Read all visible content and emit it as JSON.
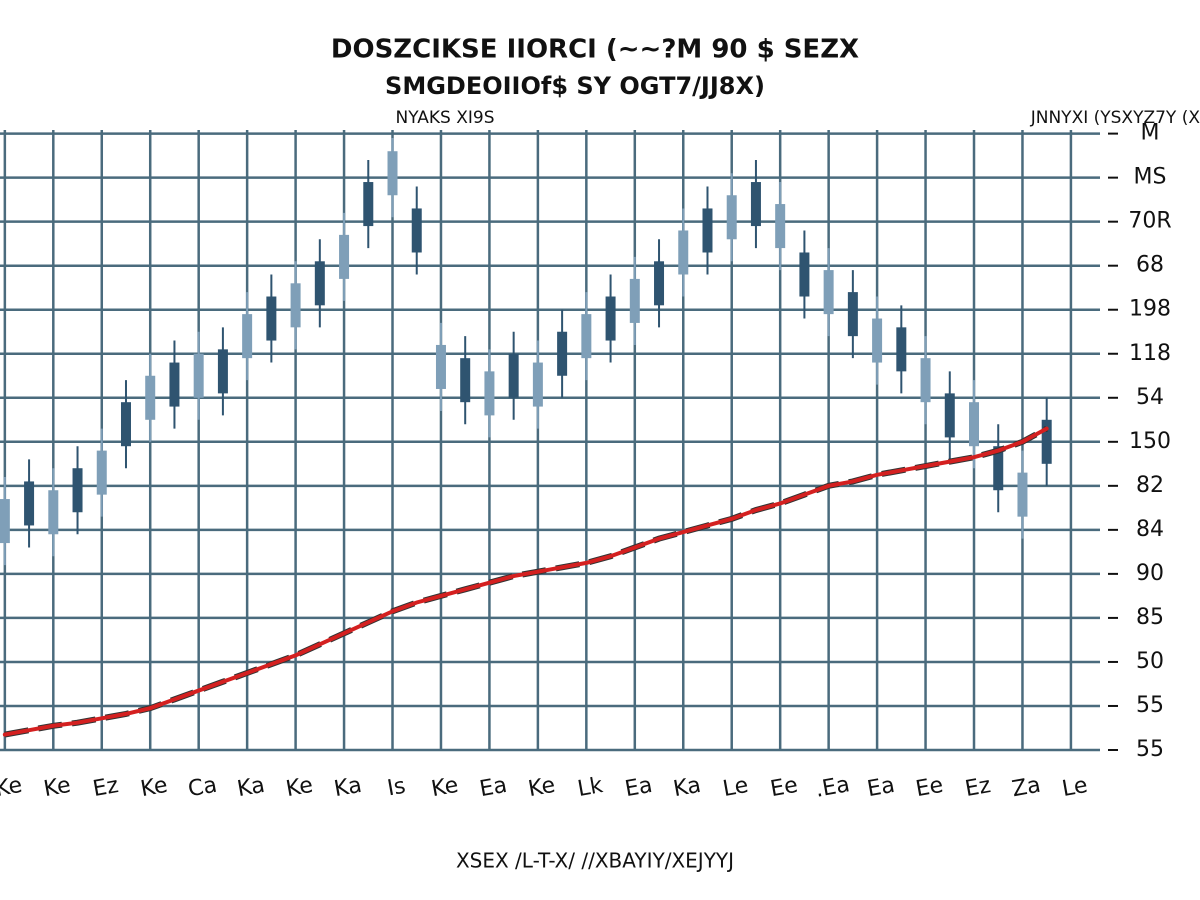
{
  "chart_data": {
    "type": "candlestick",
    "title": "DOSZCIKSE IIORCI (~~?M 90 $ SEZX",
    "subtitle": "SMGDEOIIOf$ SY OGT7/JJ8X)",
    "annotations": [
      "NYAKS XI9S",
      "JNNYXI (YSXYZ7Y (X"
    ],
    "x_label": "XSEX /L-T-X/ //XBAYIY/XEJYYJ",
    "open": [
      4.7,
      6.1,
      4.9,
      6.4,
      5.8,
      7.9,
      7.5,
      8.8,
      8.0,
      9.1,
      8.9,
      10.3,
      9.6,
      11.1,
      10.7,
      12.9,
      12.6,
      12.3,
      8.2,
      8.9,
      7.6,
      9.0,
      7.8,
      9.5,
      8.9,
      10.3,
      9.7,
      11.1,
      10.8,
      12.3,
      11.6,
      12.9,
      11.4,
      11.3,
      9.9,
      10.4,
      8.8,
      9.6,
      7.9,
      8.1,
      6.9,
      6.9,
      5.3,
      7.5
    ],
    "close": [
      5.7,
      5.1,
      5.9,
      5.4,
      6.8,
      6.9,
      8.5,
      7.8,
      9.0,
      8.1,
      9.9,
      9.3,
      10.6,
      10.1,
      11.7,
      11.9,
      13.6,
      11.3,
      9.2,
      7.9,
      8.6,
      8.0,
      8.8,
      8.5,
      9.9,
      9.3,
      10.7,
      10.1,
      11.8,
      11.3,
      12.6,
      11.9,
      12.4,
      10.3,
      10.9,
      9.4,
      9.8,
      8.6,
      8.9,
      7.1,
      7.9,
      5.9,
      6.3,
      6.5
    ],
    "high": [
      6.2,
      6.6,
      6.4,
      6.9,
      7.3,
      8.4,
      9.0,
      9.3,
      9.5,
      9.6,
      10.4,
      10.8,
      11.1,
      11.6,
      12.2,
      13.4,
      13.9,
      12.8,
      9.7,
      9.4,
      9.1,
      9.5,
      9.3,
      10.0,
      10.4,
      10.8,
      11.2,
      11.6,
      12.3,
      12.8,
      13.1,
      13.4,
      12.9,
      11.8,
      11.4,
      10.9,
      10.3,
      10.1,
      9.4,
      8.6,
      8.4,
      7.4,
      6.8,
      8.0
    ],
    "low": [
      4.2,
      4.6,
      4.4,
      4.9,
      5.3,
      6.4,
      7.0,
      7.3,
      7.5,
      7.6,
      8.4,
      8.8,
      9.1,
      9.6,
      10.2,
      11.4,
      12.1,
      10.8,
      7.7,
      7.4,
      7.1,
      7.5,
      7.3,
      8.0,
      8.4,
      8.8,
      9.2,
      9.6,
      10.3,
      10.8,
      11.1,
      11.4,
      10.9,
      9.8,
      9.4,
      8.9,
      8.3,
      8.1,
      7.4,
      6.6,
      6.4,
      5.4,
      4.8,
      6.0
    ],
    "up_color": "#7f9fb8",
    "down_color": "#2f5470",
    "series": [
      {
        "color": "#d42020",
        "values": [
          0.35,
          0.45,
          0.55,
          0.62,
          0.72,
          0.82,
          0.95,
          1.15,
          1.35,
          1.55,
          1.75,
          1.95,
          2.15,
          2.4,
          2.65,
          2.9,
          3.15,
          3.35,
          3.5,
          3.65,
          3.8,
          3.95,
          4.05,
          4.15,
          4.25,
          4.4,
          4.6,
          4.8,
          4.95,
          5.1,
          5.25,
          5.45,
          5.6,
          5.8,
          6.0,
          6.1,
          6.25,
          6.35,
          6.45,
          6.55,
          6.65,
          6.8,
          7.0,
          7.3
        ]
      }
    ],
    "xlim": [
      -0.2,
      45.2
    ],
    "xticks": [
      {
        "value": 0,
        "label": "Ke"
      },
      {
        "value": 2,
        "label": "Ke"
      },
      {
        "value": 4,
        "label": "Ez"
      },
      {
        "value": 6,
        "label": "Ke"
      },
      {
        "value": 8,
        "label": "Ca"
      },
      {
        "value": 10,
        "label": "Ka"
      },
      {
        "value": 12,
        "label": "Ke"
      },
      {
        "value": 14,
        "label": "Ka"
      },
      {
        "value": 16,
        "label": "Is"
      },
      {
        "value": 18,
        "label": "Ke"
      },
      {
        "value": 20,
        "label": "Ea"
      },
      {
        "value": 22,
        "label": "Ke"
      },
      {
        "value": 24,
        "label": "Lk"
      },
      {
        "value": 26,
        "label": "Ea"
      },
      {
        "value": 28,
        "label": "Ka"
      },
      {
        "value": 30,
        "label": "Le"
      },
      {
        "value": 32,
        "label": "Ee"
      },
      {
        "value": 34,
        "label": ".Ea"
      },
      {
        "value": 36,
        "label": "Ea"
      },
      {
        "value": 38,
        "label": "Ee"
      },
      {
        "value": 40,
        "label": "Ez"
      },
      {
        "value": 42,
        "label": "Za"
      },
      {
        "value": 44,
        "label": "Le"
      }
    ],
    "ylim": [
      0,
      14.4
    ],
    "yticks": [
      {
        "value": 0,
        "label": "55"
      },
      {
        "value": 1,
        "label": "55"
      },
      {
        "value": 2,
        "label": "50"
      },
      {
        "value": 3,
        "label": "85"
      },
      {
        "value": 4,
        "label": "90"
      },
      {
        "value": 5,
        "label": "84"
      },
      {
        "value": 6,
        "label": "82"
      },
      {
        "value": 7,
        "label": "150"
      },
      {
        "value": 8,
        "label": "54"
      },
      {
        "value": 9,
        "label": "118"
      },
      {
        "value": 10,
        "label": "198"
      },
      {
        "value": 11,
        "label": "68"
      },
      {
        "value": 12,
        "label": "70R"
      },
      {
        "value": 13,
        "label": "MS"
      },
      {
        "value": 14,
        "label": "M"
      }
    ],
    "grid": true,
    "grid_color": "#4a6b7d"
  }
}
